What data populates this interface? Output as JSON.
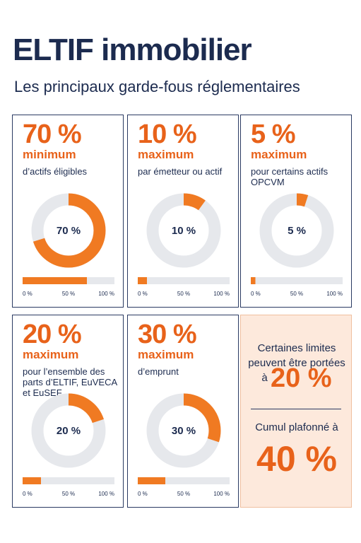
{
  "header": {
    "title": "ELTIF immobilier",
    "subtitle": "Les principaux garde-fous réglementaires"
  },
  "cards": [
    {
      "type": "donut",
      "headline": "70 %",
      "value": 70,
      "qualifier": "minimum",
      "description": "d’actifs éligibles",
      "lim": [
        0,
        100
      ],
      "ticks": [
        {
          "value": 0,
          "label": "0 %"
        },
        {
          "value": 50,
          "label": "50 %"
        },
        {
          "value": 100,
          "label": "100 %"
        }
      ]
    },
    {
      "type": "donut",
      "headline": "10 %",
      "value": 10,
      "qualifier": "maximum",
      "description": "par émetteur ou actif",
      "lim": [
        0,
        100
      ],
      "ticks": [
        {
          "value": 0,
          "label": "0 %"
        },
        {
          "value": 50,
          "label": "50 %"
        },
        {
          "value": 100,
          "label": "100 %"
        }
      ]
    },
    {
      "type": "donut",
      "headline": "5 %",
      "value": 5,
      "qualifier": "maximum",
      "description": "pour certains actifs OPCVM",
      "lim": [
        0,
        100
      ],
      "ticks": [
        {
          "value": 0,
          "label": "0 %"
        },
        {
          "value": 50,
          "label": "50 %"
        },
        {
          "value": 100,
          "label": "100 %"
        }
      ]
    },
    {
      "type": "donut",
      "headline": "20 %",
      "value": 20,
      "qualifier": "maximum",
      "description": "pour l’ensemble des parts d’ELTIF, EuVECA et EuSEF",
      "lim": [
        0,
        100
      ],
      "ticks": [
        {
          "value": 0,
          "label": "0 %"
        },
        {
          "value": 50,
          "label": "50 %"
        },
        {
          "value": 100,
          "label": "100 %"
        }
      ]
    },
    {
      "type": "donut",
      "headline": "30 %",
      "value": 30,
      "qualifier": "maximum",
      "description": "d’emprunt",
      "lim": [
        0,
        100
      ],
      "ticks": [
        {
          "value": 0,
          "label": "0 %"
        },
        {
          "value": 50,
          "label": "50 %"
        },
        {
          "value": 100,
          "label": "100 %"
        }
      ]
    }
  ],
  "note": {
    "raise_text": "Certaines limites peuvent être portées à",
    "raise_value": "20 %",
    "cap_text": "Cumul plafonné à",
    "cap_value": "40 %"
  }
}
